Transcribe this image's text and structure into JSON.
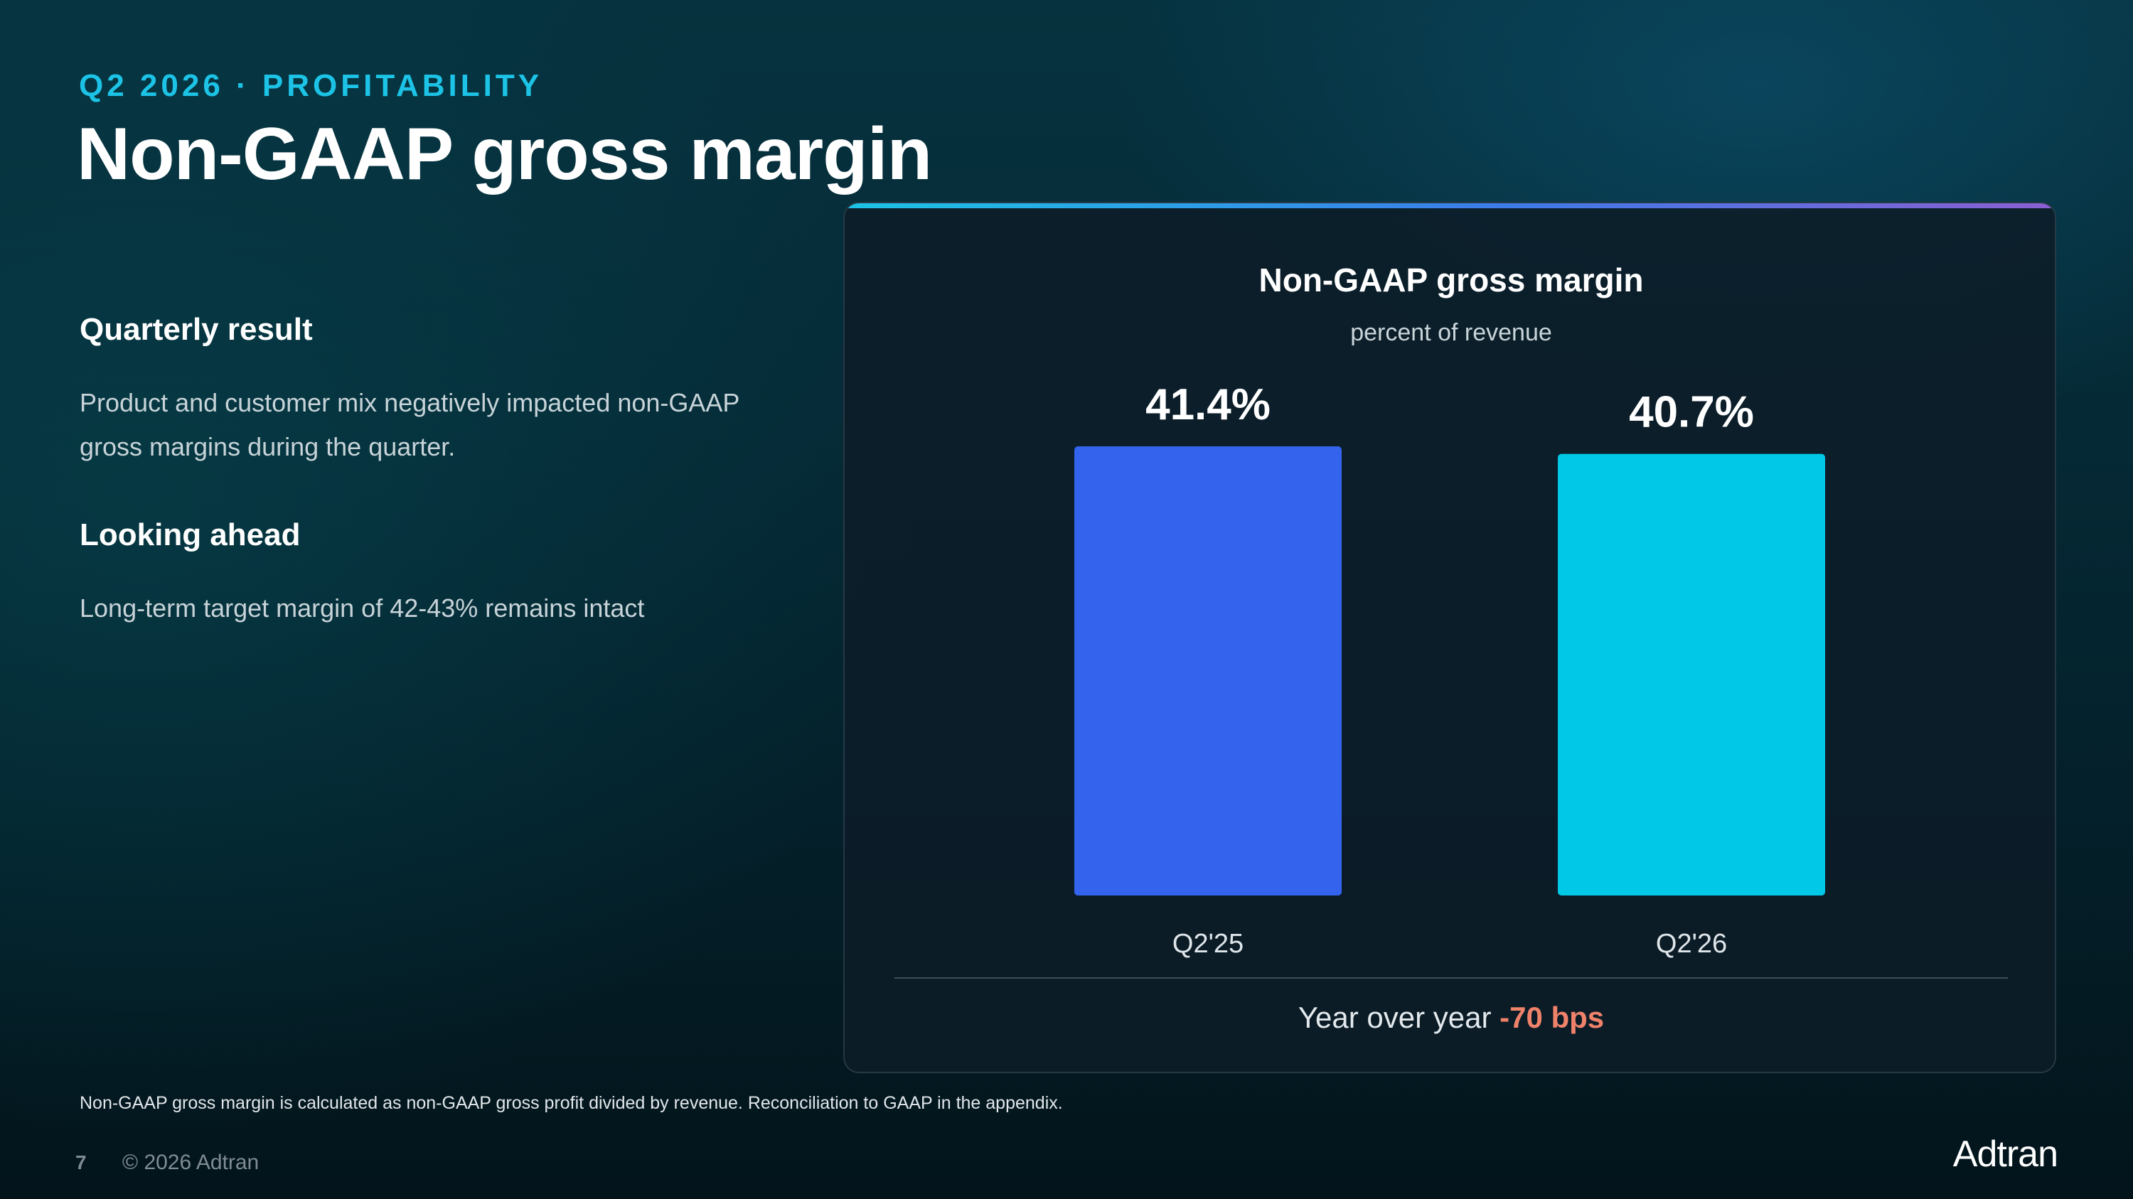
{
  "header": {
    "eyebrow": "Q2 2026 · PROFITABILITY",
    "title": "Non-GAAP gross margin"
  },
  "sections": [
    {
      "heading": "Quarterly result",
      "body": "Product and customer mix negatively impacted non-GAAP gross margins during the quarter."
    },
    {
      "heading": "Looking ahead",
      "body": "Long-term target margin of 42-43% remains intact"
    }
  ],
  "summary": {
    "label": "Year over year",
    "value": "-70 bps"
  },
  "footnote": "Non-GAAP gross margin is calculated as non-GAAP gross profit divided by revenue. Reconciliation to GAAP in the appendix.",
  "footer": {
    "page_number": "7",
    "copyright": "© 2026 Adtran",
    "logo_text": "Adtran"
  },
  "colors": {
    "accent": "#1cc3e6",
    "negative": "#f0826a"
  },
  "chart_data": {
    "type": "bar",
    "title": "Non-GAAP gross margin",
    "subtitle": "percent of revenue",
    "categories": [
      "Q2'25",
      "Q2'26"
    ],
    "values": [
      41.4,
      40.7
    ],
    "value_labels": [
      "41.4%",
      "40.7%"
    ],
    "bar_colors": [
      "#3464ee",
      "#00c8e6"
    ],
    "unit": "%",
    "grid": false,
    "legend": "none"
  }
}
